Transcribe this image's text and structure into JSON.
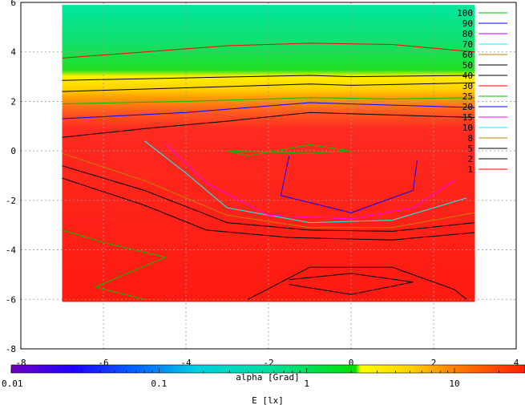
{
  "chart_data": {
    "type": "heatmap",
    "title": "",
    "xlabel": "alpha [Grad]",
    "ylabel": "",
    "xlim": [
      -8,
      4
    ],
    "ylim": [
      -8,
      6
    ],
    "xticks": [
      -8,
      -6,
      -4,
      -2,
      0,
      2,
      4
    ],
    "yticks": [
      6,
      4,
      2,
      0,
      -2,
      -4,
      -6,
      -8
    ],
    "grid": true,
    "data_extent": {
      "x": [
        -7.0,
        3.0
      ],
      "y": [
        -6.1,
        5.9
      ]
    },
    "contour_levels": [
      {
        "value": "100",
        "color": "#00c000"
      },
      {
        "value": "90",
        "color": "#0000ff"
      },
      {
        "value": "80",
        "color": "#c000ff"
      },
      {
        "value": "70",
        "color": "#00ffff"
      },
      {
        "value": "60",
        "color": "#c08000"
      },
      {
        "value": "50",
        "color": "#000000"
      },
      {
        "value": "40",
        "color": "#000000"
      },
      {
        "value": "30",
        "color": "#ff0000"
      },
      {
        "value": "25",
        "color": "#00c000"
      },
      {
        "value": "20",
        "color": "#0000ff"
      },
      {
        "value": "15",
        "color": "#ff00ff"
      },
      {
        "value": "10",
        "color": "#00ffff"
      },
      {
        "value": "8",
        "color": "#c08000"
      },
      {
        "value": "5",
        "color": "#000000"
      },
      {
        "value": "2",
        "color": "#000000"
      },
      {
        "value": "1",
        "color": "#ff0000"
      }
    ],
    "colorbar": {
      "label": "E [lx]",
      "scale": "log",
      "range": [
        0.01,
        30
      ],
      "tick_labels": [
        "0.01",
        "0.1",
        "1",
        "10"
      ],
      "tick_values": [
        0.01,
        0.1,
        1,
        10
      ]
    }
  }
}
